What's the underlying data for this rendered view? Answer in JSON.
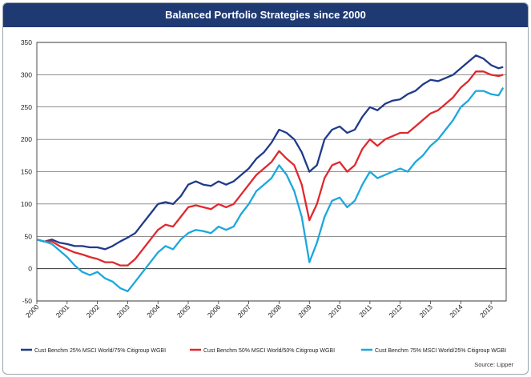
{
  "chart_data": {
    "type": "line",
    "title": "Balanced Portfolio Strategies since 2000",
    "xlabel": "",
    "ylabel": "",
    "ylim": [
      -50,
      350
    ],
    "yticks": [
      "-50",
      "0",
      "50",
      "100",
      "150",
      "200",
      "250",
      "300",
      "350"
    ],
    "xlim": [
      2000,
      2015.5
    ],
    "xticks": [
      "2000",
      "2001",
      "2002",
      "2003",
      "2004",
      "2005",
      "2006",
      "2007",
      "2008",
      "2009",
      "2010",
      "2011",
      "2012",
      "2013",
      "2014",
      "2015"
    ],
    "grid": "horizontal",
    "legend_position": "bottom",
    "source": "Source: Lipper",
    "series": [
      {
        "name": "Cust Benchm 25% MSCI World/75% Citigroup WGBI",
        "color": "#1f3a8a",
        "points": [
          [
            2000.0,
            45
          ],
          [
            2000.25,
            42
          ],
          [
            2000.5,
            45
          ],
          [
            2000.75,
            40
          ],
          [
            2001.0,
            38
          ],
          [
            2001.25,
            35
          ],
          [
            2001.5,
            35
          ],
          [
            2001.75,
            33
          ],
          [
            2002.0,
            33
          ],
          [
            2002.25,
            30
          ],
          [
            2002.5,
            35
          ],
          [
            2002.75,
            42
          ],
          [
            2003.0,
            48
          ],
          [
            2003.25,
            55
          ],
          [
            2003.5,
            70
          ],
          [
            2003.75,
            85
          ],
          [
            2004.0,
            100
          ],
          [
            2004.25,
            103
          ],
          [
            2004.5,
            100
          ],
          [
            2004.75,
            112
          ],
          [
            2005.0,
            130
          ],
          [
            2005.25,
            135
          ],
          [
            2005.5,
            130
          ],
          [
            2005.75,
            128
          ],
          [
            2006.0,
            135
          ],
          [
            2006.25,
            130
          ],
          [
            2006.5,
            135
          ],
          [
            2006.75,
            145
          ],
          [
            2007.0,
            155
          ],
          [
            2007.25,
            170
          ],
          [
            2007.5,
            180
          ],
          [
            2007.75,
            195
          ],
          [
            2008.0,
            215
          ],
          [
            2008.25,
            210
          ],
          [
            2008.5,
            200
          ],
          [
            2008.75,
            180
          ],
          [
            2009.0,
            150
          ],
          [
            2009.25,
            160
          ],
          [
            2009.5,
            200
          ],
          [
            2009.75,
            215
          ],
          [
            2010.0,
            220
          ],
          [
            2010.25,
            210
          ],
          [
            2010.5,
            215
          ],
          [
            2010.75,
            235
          ],
          [
            2011.0,
            250
          ],
          [
            2011.25,
            245
          ],
          [
            2011.5,
            255
          ],
          [
            2011.75,
            260
          ],
          [
            2012.0,
            262
          ],
          [
            2012.25,
            270
          ],
          [
            2012.5,
            275
          ],
          [
            2012.75,
            285
          ],
          [
            2013.0,
            292
          ],
          [
            2013.25,
            290
          ],
          [
            2013.5,
            295
          ],
          [
            2013.75,
            300
          ],
          [
            2014.0,
            310
          ],
          [
            2014.25,
            320
          ],
          [
            2014.5,
            330
          ],
          [
            2014.75,
            325
          ],
          [
            2015.0,
            315
          ],
          [
            2015.25,
            310
          ],
          [
            2015.4,
            312
          ]
        ]
      },
      {
        "name": "Cust Benchm 50% MSCI World/50% Citigroup WGBI",
        "color": "#e0282e",
        "points": [
          [
            2000.0,
            45
          ],
          [
            2000.25,
            42
          ],
          [
            2000.5,
            42
          ],
          [
            2000.75,
            35
          ],
          [
            2001.0,
            30
          ],
          [
            2001.25,
            25
          ],
          [
            2001.5,
            22
          ],
          [
            2001.75,
            18
          ],
          [
            2002.0,
            15
          ],
          [
            2002.25,
            10
          ],
          [
            2002.5,
            10
          ],
          [
            2002.75,
            5
          ],
          [
            2003.0,
            5
          ],
          [
            2003.25,
            15
          ],
          [
            2003.5,
            30
          ],
          [
            2003.75,
            45
          ],
          [
            2004.0,
            60
          ],
          [
            2004.25,
            68
          ],
          [
            2004.5,
            65
          ],
          [
            2004.75,
            80
          ],
          [
            2005.0,
            95
          ],
          [
            2005.25,
            98
          ],
          [
            2005.5,
            95
          ],
          [
            2005.75,
            92
          ],
          [
            2006.0,
            100
          ],
          [
            2006.25,
            95
          ],
          [
            2006.5,
            100
          ],
          [
            2006.75,
            115
          ],
          [
            2007.0,
            130
          ],
          [
            2007.25,
            145
          ],
          [
            2007.5,
            155
          ],
          [
            2007.75,
            165
          ],
          [
            2008.0,
            182
          ],
          [
            2008.25,
            170
          ],
          [
            2008.5,
            160
          ],
          [
            2008.75,
            130
          ],
          [
            2009.0,
            75
          ],
          [
            2009.25,
            100
          ],
          [
            2009.5,
            140
          ],
          [
            2009.75,
            160
          ],
          [
            2010.0,
            165
          ],
          [
            2010.25,
            150
          ],
          [
            2010.5,
            160
          ],
          [
            2010.75,
            185
          ],
          [
            2011.0,
            200
          ],
          [
            2011.25,
            190
          ],
          [
            2011.5,
            200
          ],
          [
            2011.75,
            205
          ],
          [
            2012.0,
            210
          ],
          [
            2012.25,
            210
          ],
          [
            2012.5,
            220
          ],
          [
            2012.75,
            230
          ],
          [
            2013.0,
            240
          ],
          [
            2013.25,
            245
          ],
          [
            2013.5,
            255
          ],
          [
            2013.75,
            265
          ],
          [
            2014.0,
            280
          ],
          [
            2014.25,
            290
          ],
          [
            2014.5,
            305
          ],
          [
            2014.75,
            305
          ],
          [
            2015.0,
            300
          ],
          [
            2015.25,
            298
          ],
          [
            2015.4,
            300
          ]
        ]
      },
      {
        "name": "Cust Benchm 75% MSCI World/25% Citigroup WGBI",
        "color": "#1ba7dd",
        "points": [
          [
            2000.0,
            45
          ],
          [
            2000.25,
            42
          ],
          [
            2000.5,
            38
          ],
          [
            2000.75,
            28
          ],
          [
            2001.0,
            18
          ],
          [
            2001.25,
            5
          ],
          [
            2001.5,
            -5
          ],
          [
            2001.75,
            -10
          ],
          [
            2002.0,
            -5
          ],
          [
            2002.25,
            -15
          ],
          [
            2002.5,
            -20
          ],
          [
            2002.75,
            -30
          ],
          [
            2003.0,
            -35
          ],
          [
            2003.25,
            -20
          ],
          [
            2003.5,
            -5
          ],
          [
            2003.75,
            10
          ],
          [
            2004.0,
            25
          ],
          [
            2004.25,
            35
          ],
          [
            2004.5,
            30
          ],
          [
            2004.75,
            45
          ],
          [
            2005.0,
            55
          ],
          [
            2005.25,
            60
          ],
          [
            2005.5,
            58
          ],
          [
            2005.75,
            55
          ],
          [
            2006.0,
            65
          ],
          [
            2006.25,
            60
          ],
          [
            2006.5,
            65
          ],
          [
            2006.75,
            85
          ],
          [
            2007.0,
            100
          ],
          [
            2007.25,
            120
          ],
          [
            2007.5,
            130
          ],
          [
            2007.75,
            140
          ],
          [
            2008.0,
            160
          ],
          [
            2008.25,
            145
          ],
          [
            2008.5,
            120
          ],
          [
            2008.75,
            80
          ],
          [
            2009.0,
            10
          ],
          [
            2009.25,
            40
          ],
          [
            2009.5,
            80
          ],
          [
            2009.75,
            105
          ],
          [
            2010.0,
            110
          ],
          [
            2010.25,
            95
          ],
          [
            2010.5,
            105
          ],
          [
            2010.75,
            130
          ],
          [
            2011.0,
            150
          ],
          [
            2011.25,
            140
          ],
          [
            2011.5,
            145
          ],
          [
            2011.75,
            150
          ],
          [
            2012.0,
            155
          ],
          [
            2012.25,
            150
          ],
          [
            2012.5,
            165
          ],
          [
            2012.75,
            175
          ],
          [
            2013.0,
            190
          ],
          [
            2013.25,
            200
          ],
          [
            2013.5,
            215
          ],
          [
            2013.75,
            230
          ],
          [
            2014.0,
            250
          ],
          [
            2014.25,
            260
          ],
          [
            2014.5,
            275
          ],
          [
            2014.75,
            275
          ],
          [
            2015.0,
            270
          ],
          [
            2015.25,
            268
          ],
          [
            2015.4,
            280
          ]
        ]
      }
    ]
  }
}
